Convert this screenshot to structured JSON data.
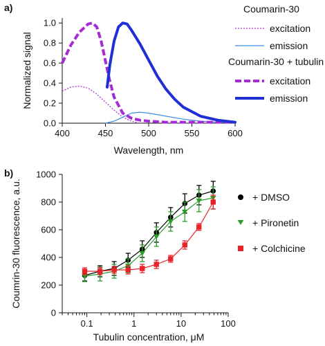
{
  "chart_data": [
    {
      "panel_label": "a)",
      "type": "line",
      "xlabel": "Wavelength, nm",
      "ylabel": "Normalized signal",
      "xlim": [
        400,
        600
      ],
      "ylim": [
        0.0,
        1.05
      ],
      "x_ticks": [
        400,
        450,
        500,
        550,
        600
      ],
      "y_ticks": [
        0.0,
        0.2,
        0.4,
        0.6,
        0.8,
        1.0
      ],
      "x_tick_labels": [
        "400",
        "450",
        "500",
        "550",
        "600"
      ],
      "y_tick_labels": [
        "0.0",
        "0.2",
        "0.4",
        "0.6",
        "0.8",
        "1.0"
      ],
      "grid": false,
      "legend_position": "right",
      "legend_groups": [
        {
          "title": "Coumarin-30",
          "entries": [
            "excitation",
            "emission"
          ]
        },
        {
          "title": "Coumarin-30 + tubulin",
          "entries": [
            "excitation",
            "emission"
          ]
        }
      ],
      "series": [
        {
          "name": "Coumarin-30 excitation",
          "style": "dotted-thin",
          "color": "#b030d8",
          "x": [
            400,
            410,
            420,
            430,
            440,
            450,
            460,
            470,
            480,
            490
          ],
          "y": [
            0.32,
            0.36,
            0.37,
            0.35,
            0.29,
            0.21,
            0.13,
            0.06,
            0.02,
            0.0
          ]
        },
        {
          "name": "Coumarin-30 emission",
          "style": "solid-thin",
          "color": "#3a8fe6",
          "x": [
            450,
            460,
            470,
            480,
            490,
            500,
            520,
            540,
            560,
            580,
            600
          ],
          "y": [
            0.0,
            0.02,
            0.06,
            0.1,
            0.11,
            0.1,
            0.07,
            0.04,
            0.02,
            0.01,
            0.005
          ]
        },
        {
          "name": "Coumarin-30 + tubulin excitation",
          "style": "dashed-thick",
          "color": "#a62ad6",
          "x": [
            400,
            410,
            420,
            430,
            435,
            440,
            445,
            450,
            455,
            460,
            470,
            480,
            490,
            500,
            520,
            540,
            560,
            580,
            600
          ],
          "y": [
            0.6,
            0.78,
            0.91,
            0.99,
            1.0,
            0.96,
            0.82,
            0.62,
            0.42,
            0.26,
            0.1,
            0.05,
            0.03,
            0.02,
            0.01,
            0.01,
            0.01,
            0.01,
            0.01
          ]
        },
        {
          "name": "Coumarin-30 + tubulin emission",
          "style": "solid-thick",
          "color": "#1f2fd6",
          "x": [
            452,
            455,
            460,
            465,
            470,
            475,
            480,
            490,
            500,
            510,
            520,
            530,
            540,
            560,
            580,
            600
          ],
          "y": [
            0.36,
            0.58,
            0.82,
            0.96,
            1.0,
            0.99,
            0.93,
            0.79,
            0.63,
            0.47,
            0.34,
            0.24,
            0.16,
            0.07,
            0.03,
            0.01
          ]
        }
      ]
    },
    {
      "panel_label": "b)",
      "type": "scatter",
      "xlabel": "Tubulin concentration, μM",
      "ylabel": "Coumrin-30 fluorescence, a.u.",
      "x_scale": "log",
      "xlim": [
        0.03,
        100
      ],
      "ylim": [
        0,
        1000
      ],
      "x_ticks": [
        0.1,
        1,
        10,
        100
      ],
      "y_ticks": [
        0,
        200,
        400,
        600,
        800,
        1000
      ],
      "x_tick_labels": [
        "0.1",
        "1",
        "10",
        "100"
      ],
      "y_tick_labels": [
        "0",
        "200",
        "400",
        "600",
        "800",
        "1000"
      ],
      "grid": false,
      "legend_position": "right",
      "series": [
        {
          "name": "+ DMSO",
          "marker": "circle",
          "color": "#000000",
          "x": [
            0.09,
            0.19,
            0.38,
            0.75,
            1.5,
            3,
            6,
            12,
            24,
            48
          ],
          "y": [
            270,
            300,
            320,
            380,
            460,
            580,
            690,
            790,
            850,
            880
          ],
          "err": [
            40,
            40,
            50,
            50,
            60,
            70,
            70,
            70,
            70,
            70
          ]
        },
        {
          "name": "+ Pironetin",
          "marker": "triangle-down",
          "color": "#2a9d2a",
          "x": [
            0.09,
            0.19,
            0.38,
            0.75,
            1.5,
            3,
            6,
            12,
            24,
            48
          ],
          "y": [
            265,
            280,
            300,
            340,
            430,
            550,
            660,
            730,
            810,
            830
          ],
          "err": [
            40,
            50,
            50,
            50,
            60,
            70,
            70,
            70,
            80,
            80
          ]
        },
        {
          "name": "+ Colchicine",
          "marker": "square",
          "color": "#e8242b",
          "x": [
            0.09,
            0.19,
            0.38,
            0.75,
            1.5,
            3,
            6,
            12,
            24,
            48
          ],
          "y": [
            300,
            300,
            310,
            310,
            320,
            350,
            390,
            490,
            620,
            800
          ],
          "err": [
            25,
            25,
            25,
            30,
            30,
            30,
            25,
            30,
            25,
            50
          ]
        }
      ]
    }
  ]
}
